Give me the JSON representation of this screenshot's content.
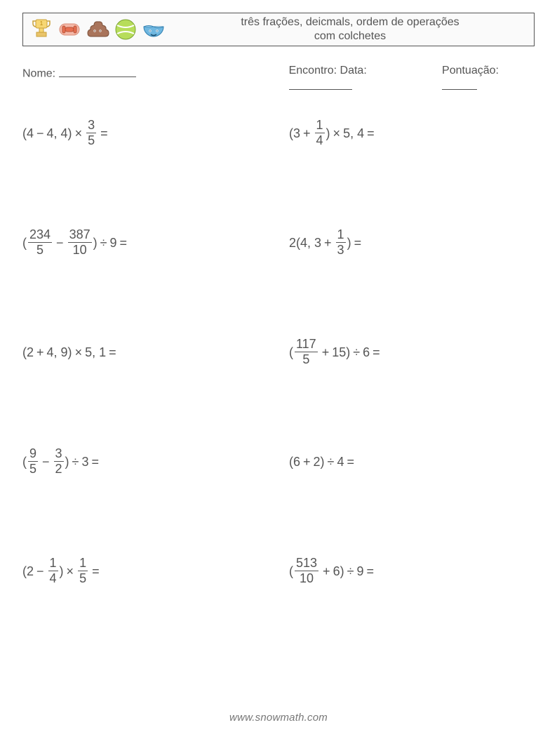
{
  "header": {
    "title_line1": "três frações, deicmals, ordem de operações",
    "title_line2": "com colchetes",
    "border_color": "#555555",
    "bg_color": "#fafafa"
  },
  "icons": [
    {
      "name": "trophy-icon",
      "type": "trophy"
    },
    {
      "name": "dumbbell-icon",
      "type": "dumbbell"
    },
    {
      "name": "poop-icon",
      "type": "poop"
    },
    {
      "name": "tennis-icon",
      "type": "tennis"
    },
    {
      "name": "bowl-icon",
      "type": "bowl"
    }
  ],
  "meta": {
    "name_label": "Nome:",
    "date_label": "Encontro: Data:",
    "score_label": "Pontuação:",
    "name_blank_width": 110,
    "date_blank_width": 90,
    "score_blank_width": 50
  },
  "symbols": {
    "times": "×",
    "divide": "÷",
    "minus": "−",
    "plus": "+",
    "equals": "="
  },
  "problems": [
    {
      "id": "p1",
      "tokens": [
        {
          "t": "text",
          "v": "(4 "
        },
        {
          "t": "op",
          "v": "minus"
        },
        {
          "t": "text",
          "v": " 4, 4) "
        },
        {
          "t": "op",
          "v": "times"
        },
        {
          "t": "text",
          "v": " "
        },
        {
          "t": "frac",
          "num": "3",
          "den": "5"
        },
        {
          "t": "text",
          "v": " "
        },
        {
          "t": "op",
          "v": "equals"
        }
      ]
    },
    {
      "id": "p2",
      "tokens": [
        {
          "t": "text",
          "v": "(3 "
        },
        {
          "t": "op",
          "v": "plus"
        },
        {
          "t": "text",
          "v": " "
        },
        {
          "t": "frac",
          "num": "1",
          "den": "4"
        },
        {
          "t": "text",
          "v": ") "
        },
        {
          "t": "op",
          "v": "times"
        },
        {
          "t": "text",
          "v": " 5, 4 "
        },
        {
          "t": "op",
          "v": "equals"
        }
      ]
    },
    {
      "id": "p3",
      "tokens": [
        {
          "t": "text",
          "v": "("
        },
        {
          "t": "frac",
          "num": "234",
          "den": "5"
        },
        {
          "t": "text",
          "v": " "
        },
        {
          "t": "op",
          "v": "minus"
        },
        {
          "t": "text",
          "v": " "
        },
        {
          "t": "frac",
          "num": "387",
          "den": "10"
        },
        {
          "t": "text",
          "v": ") "
        },
        {
          "t": "op",
          "v": "divide"
        },
        {
          "t": "text",
          "v": " 9 "
        },
        {
          "t": "op",
          "v": "equals"
        }
      ]
    },
    {
      "id": "p4",
      "tokens": [
        {
          "t": "text",
          "v": "2(4, 3 "
        },
        {
          "t": "op",
          "v": "plus"
        },
        {
          "t": "text",
          "v": " "
        },
        {
          "t": "frac",
          "num": "1",
          "den": "3"
        },
        {
          "t": "text",
          "v": ") "
        },
        {
          "t": "op",
          "v": "equals"
        }
      ]
    },
    {
      "id": "p5",
      "tokens": [
        {
          "t": "text",
          "v": "(2 "
        },
        {
          "t": "op",
          "v": "plus"
        },
        {
          "t": "text",
          "v": " 4, 9) "
        },
        {
          "t": "op",
          "v": "times"
        },
        {
          "t": "text",
          "v": " 5, 1 "
        },
        {
          "t": "op",
          "v": "equals"
        }
      ]
    },
    {
      "id": "p6",
      "tokens": [
        {
          "t": "text",
          "v": "("
        },
        {
          "t": "frac",
          "num": "117",
          "den": "5"
        },
        {
          "t": "text",
          "v": " "
        },
        {
          "t": "op",
          "v": "plus"
        },
        {
          "t": "text",
          "v": " 15) "
        },
        {
          "t": "op",
          "v": "divide"
        },
        {
          "t": "text",
          "v": " 6 "
        },
        {
          "t": "op",
          "v": "equals"
        }
      ]
    },
    {
      "id": "p7",
      "tokens": [
        {
          "t": "text",
          "v": "("
        },
        {
          "t": "frac",
          "num": "9",
          "den": "5"
        },
        {
          "t": "text",
          "v": " "
        },
        {
          "t": "op",
          "v": "minus"
        },
        {
          "t": "text",
          "v": " "
        },
        {
          "t": "frac",
          "num": "3",
          "den": "2"
        },
        {
          "t": "text",
          "v": ") "
        },
        {
          "t": "op",
          "v": "divide"
        },
        {
          "t": "text",
          "v": " 3 "
        },
        {
          "t": "op",
          "v": "equals"
        }
      ]
    },
    {
      "id": "p8",
      "tokens": [
        {
          "t": "text",
          "v": "(6 "
        },
        {
          "t": "op",
          "v": "plus"
        },
        {
          "t": "text",
          "v": " 2) "
        },
        {
          "t": "op",
          "v": "divide"
        },
        {
          "t": "text",
          "v": " 4 "
        },
        {
          "t": "op",
          "v": "equals"
        }
      ]
    },
    {
      "id": "p9",
      "tokens": [
        {
          "t": "text",
          "v": "(2 "
        },
        {
          "t": "op",
          "v": "minus"
        },
        {
          "t": "text",
          "v": " "
        },
        {
          "t": "frac",
          "num": "1",
          "den": "4"
        },
        {
          "t": "text",
          "v": ") "
        },
        {
          "t": "op",
          "v": "times"
        },
        {
          "t": "text",
          "v": " "
        },
        {
          "t": "frac",
          "num": "1",
          "den": "5"
        },
        {
          "t": "text",
          "v": " "
        },
        {
          "t": "op",
          "v": "equals"
        }
      ]
    },
    {
      "id": "p10",
      "tokens": [
        {
          "t": "text",
          "v": "("
        },
        {
          "t": "frac",
          "num": "513",
          "den": "10"
        },
        {
          "t": "text",
          "v": " "
        },
        {
          "t": "op",
          "v": "plus"
        },
        {
          "t": "text",
          "v": " 6) "
        },
        {
          "t": "op",
          "v": "divide"
        },
        {
          "t": "text",
          "v": " 9 "
        },
        {
          "t": "op",
          "v": "equals"
        }
      ]
    }
  ],
  "footer": {
    "text": "www.snowmath.com"
  },
  "colors": {
    "text": "#555555",
    "background": "#ffffff",
    "footer": "#777777"
  },
  "typography": {
    "body_fontsize": 18,
    "title_fontsize": 16,
    "meta_fontsize": 16,
    "footer_fontsize": 15
  }
}
